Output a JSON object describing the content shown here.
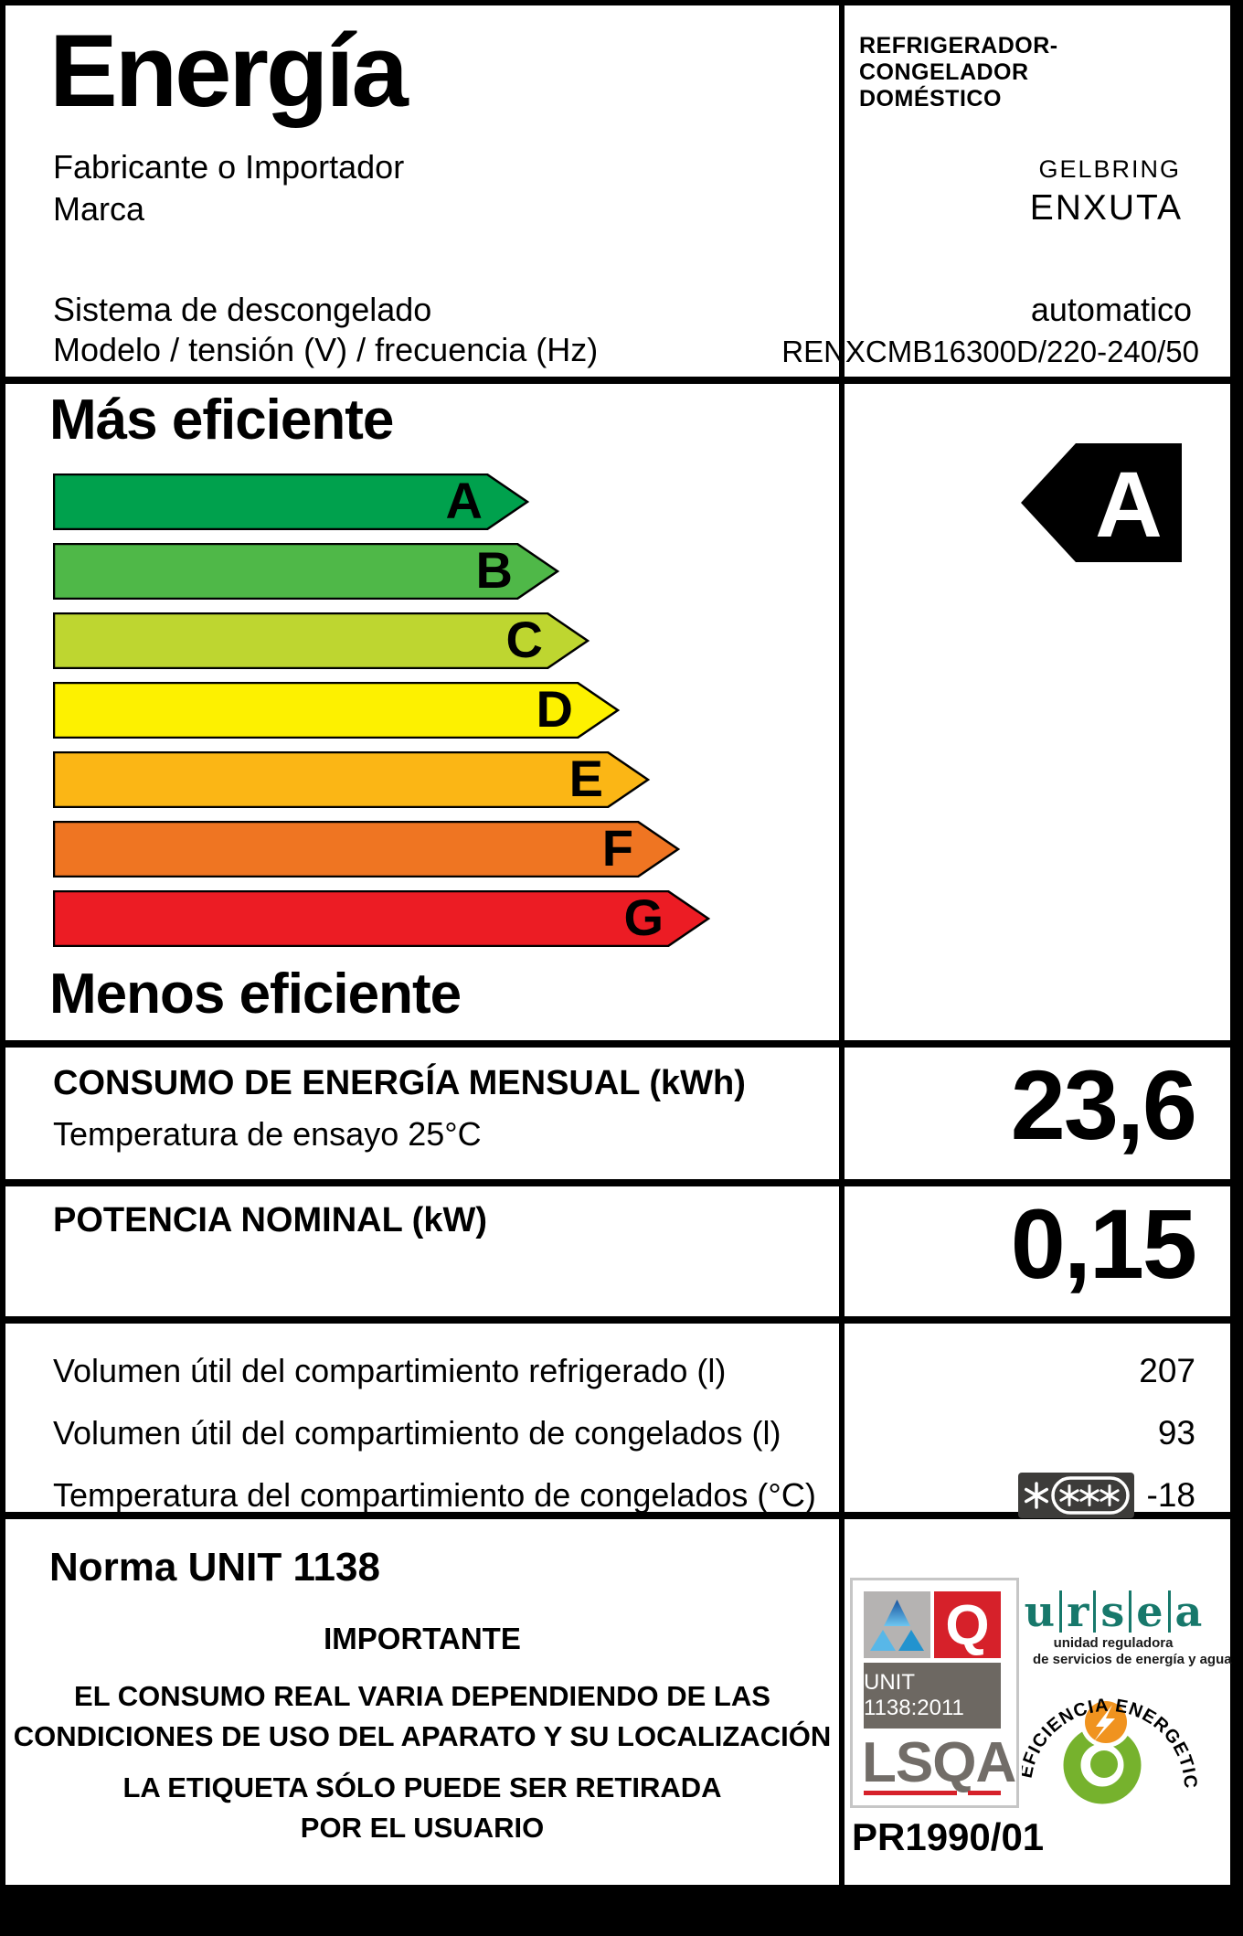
{
  "theme": {
    "lsqa_gray": "#726d68",
    "lsqa_band": "#6d6862",
    "lsqa_red": "#d6212a",
    "lsqa_silver": "#b5b3b2",
    "lsqa_border": "#c6c6c6",
    "ursea_teal": "#17786b",
    "badge_green": "#76b22d",
    "badge_orange": "#f0931f",
    "star_box": "#3d3c3a",
    "selected_arrow": "#000000"
  },
  "header": {
    "title": "Energía",
    "manufacturer_label": "Fabricante o Importador",
    "brand_label": "Marca",
    "appliance_type_lines": [
      "REFRIGERADOR-",
      "CONGELADOR",
      "DOMÉSTICO"
    ],
    "manufacturer": "GELBRING",
    "brand": "ENXUTA",
    "defrost_label": "Sistema de descongelado",
    "defrost_value": "automatico",
    "model_label": "Modelo / tensión (V) / frecuencia (Hz)",
    "model_value": "RENXCMB16300D/220-240/50"
  },
  "scale": {
    "more_efficient_label": "Más eficiente",
    "less_efficient_label": "Menos eficiente",
    "selected": "A",
    "ratings": [
      {
        "letter": "A",
        "color": "#00a14d"
      },
      {
        "letter": "B",
        "color": "#4fb848"
      },
      {
        "letter": "C",
        "color": "#bed630"
      },
      {
        "letter": "D",
        "color": "#fdf100"
      },
      {
        "letter": "E",
        "color": "#fbb615"
      },
      {
        "letter": "F",
        "color": "#ef7522"
      },
      {
        "letter": "G",
        "color": "#ec1c24"
      }
    ]
  },
  "consumption": {
    "label": "CONSUMO DE ENERGÍA MENSUAL (kWh)",
    "sublabel": "Temperatura de ensayo 25°C",
    "value": "23,6"
  },
  "power": {
    "label": "POTENCIA NOMINAL (kW)",
    "value": "0,15"
  },
  "specs": {
    "rows": [
      {
        "label": "Volumen útil del compartimiento refrigerado (l)",
        "value": "207",
        "stars": false
      },
      {
        "label": "Volumen útil del compartimiento de congelados (l)",
        "value": "93",
        "stars": false
      },
      {
        "label": "Temperatura del compartimiento de congelados (°C)",
        "value": "-18",
        "stars": true
      }
    ]
  },
  "footer": {
    "norma": "Norma UNIT 1138",
    "important_title": "IMPORTANTE",
    "lines": [
      "EL CONSUMO REAL VARIA DEPENDIENDO DE LAS",
      "CONDICIONES DE USO DEL APARATO Y SU LOCALIZACIÓN",
      "LA ETIQUETA SÓLO PUEDE SER RETIRADA",
      "POR EL USUARIO"
    ]
  },
  "certification": {
    "unit_band": "UNIT 1138:2011",
    "lsqa": "LSQA",
    "pr_number": "PR1990/01",
    "ursea_letters": [
      "u",
      "r",
      "s",
      "e",
      "a"
    ],
    "ursea_sub1": "unidad reguladora",
    "ursea_sub2": "de servicios de energía y agua",
    "badge_text": "EFICIENCIA ENERGETICA"
  }
}
